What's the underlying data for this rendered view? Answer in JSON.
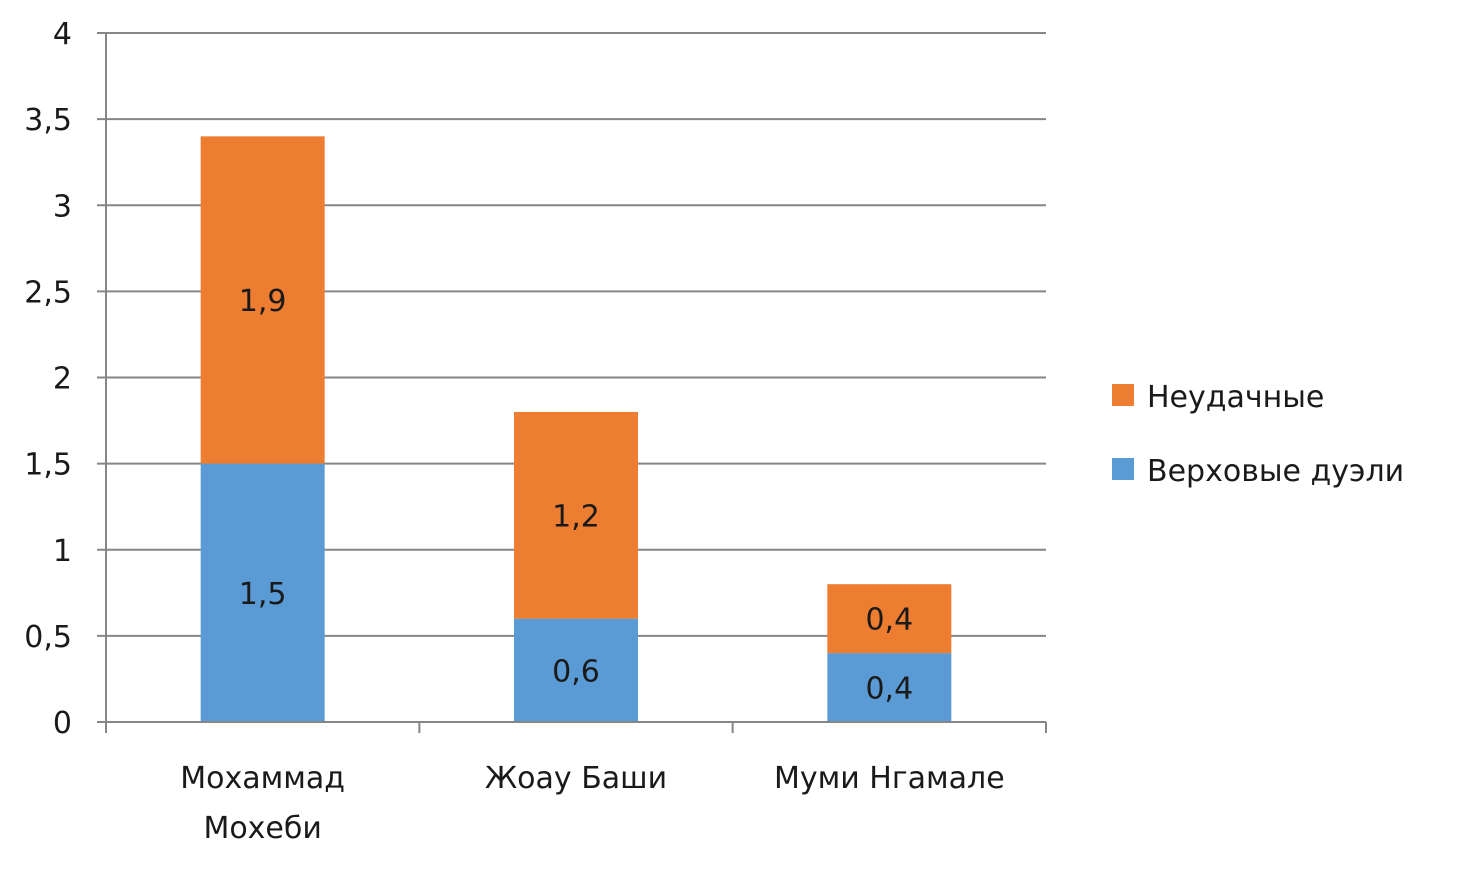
{
  "chart_data": {
    "type": "bar",
    "stacked": true,
    "categories": [
      [
        "Мохаммад",
        "Мохеби"
      ],
      [
        "Жоау Баши"
      ],
      [
        "Муми Нгамале"
      ]
    ],
    "series": [
      {
        "name": "Верховые дуэли",
        "values": [
          1.5,
          0.6,
          0.4
        ],
        "labels": [
          "1,5",
          "0,6",
          "0,4"
        ],
        "color": "#5b9bd5"
      },
      {
        "name": "Неудачные",
        "values": [
          1.9,
          1.2,
          0.4
        ],
        "labels": [
          "1,9",
          "1,2",
          "0,4"
        ],
        "color": "#ed7d31"
      }
    ],
    "ylim": [
      0,
      4
    ],
    "yticks": [
      0,
      0.5,
      1,
      1.5,
      2,
      2.5,
      3,
      3.5,
      4
    ],
    "ytick_labels": [
      "0",
      "0,5",
      "1",
      "1,5",
      "2",
      "2,5",
      "3",
      "3,5",
      "4"
    ],
    "grid": true,
    "legend": {
      "position": "right",
      "order": [
        "Неудачные",
        "Верховые дуэли"
      ]
    },
    "colors": {
      "grid": "#868686",
      "axis": "#868686"
    }
  }
}
